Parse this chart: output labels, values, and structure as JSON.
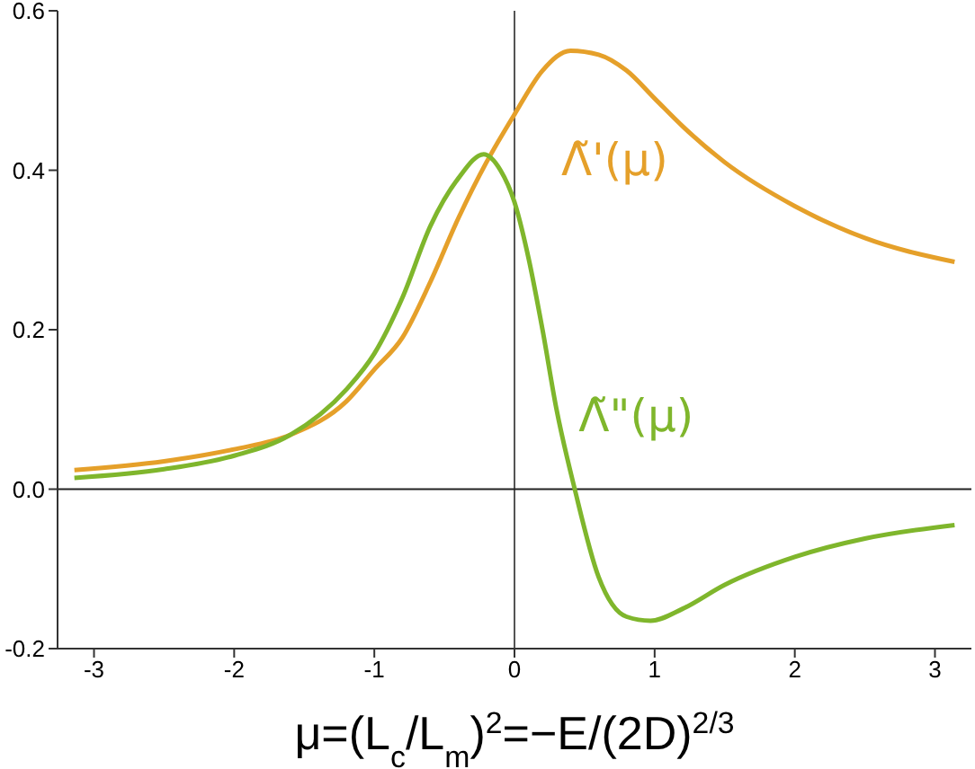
{
  "chart_data": {
    "type": "line",
    "xlabel": "μ=(L$_{c}$/L$_{m}$)$^{2}$=−E/(2D)$^{2/3}$",
    "x": [
      -3.14,
      -2.5,
      -2,
      -1.6,
      -1.2,
      -1,
      -0.8,
      -0.6,
      -0.4,
      -0.2,
      0,
      0.2,
      0.4,
      0.6,
      0.8,
      1,
      1.2,
      1.5,
      2,
      2.5,
      3.14
    ],
    "series": [
      {
        "name": "Λ̃'(μ)",
        "color": "#e5a02a",
        "values": [
          0.024,
          0.035,
          0.05,
          0.068,
          0.11,
          0.15,
          0.19,
          0.26,
          0.34,
          0.41,
          0.47,
          0.525,
          0.55,
          0.545,
          0.525,
          0.49,
          0.455,
          0.41,
          0.355,
          0.315,
          0.285
        ]
      },
      {
        "name": "Λ̃\"(μ)",
        "color": "#7fb62c",
        "x": [
          -3.14,
          -2.5,
          -2,
          -1.6,
          -1.2,
          -1,
          -0.8,
          -0.6,
          -0.4,
          -0.22,
          -0.1,
          0,
          0.1,
          0.2,
          0.3,
          0.43,
          0.6,
          0.8,
          0.97,
          1.2,
          1.5,
          2,
          2.5,
          3.14
        ],
        "values": [
          0.014,
          0.025,
          0.042,
          0.068,
          0.125,
          0.17,
          0.24,
          0.33,
          0.39,
          0.42,
          0.4,
          0.36,
          0.29,
          0.2,
          0.1,
          0,
          -0.11,
          -0.16,
          -0.165,
          -0.15,
          -0.12,
          -0.085,
          -0.062,
          -0.045
        ]
      }
    ],
    "xlim": [
      -3.26,
      3.26
    ],
    "xticks": [
      -3,
      -2,
      -1,
      0,
      1,
      2,
      3
    ],
    "ylim": [
      -0.2,
      0.6
    ],
    "yticks": [
      {
        "value": -0.2,
        "label": "-0.2"
      },
      {
        "value": 0,
        "label": "0.0"
      },
      {
        "value": 0.2,
        "label": "0.2"
      },
      {
        "value": 0.4,
        "label": "0.4"
      },
      {
        "value": 0.6,
        "label": "0.6"
      }
    ],
    "ref_lines": [
      {
        "axis": "x",
        "value": 0,
        "color": "#555555"
      },
      {
        "axis": "y",
        "value": 0,
        "color": "#222222"
      }
    ],
    "grid": false,
    "legend": false
  }
}
